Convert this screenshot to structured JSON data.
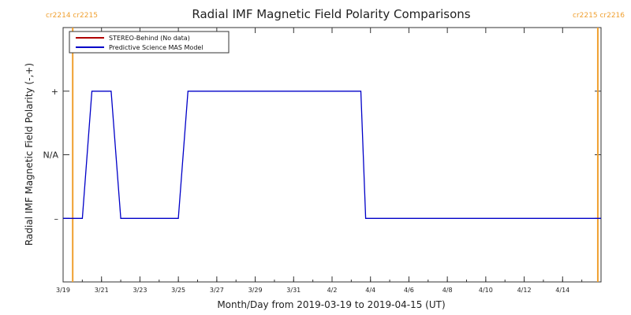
{
  "chart_data": {
    "type": "line",
    "title": "Radial IMF Magnetic Field Polarity Comparisons",
    "xlabel": "Month/Day from 2019-03-19 to 2019-04-15 (UT)",
    "ylabel": "Radial IMF Magnetic Field Polarity (-,+)",
    "x_range": [
      "2019-03-19",
      "2019-04-16"
    ],
    "y_levels": [
      {
        "label": "+",
        "value": 1
      },
      {
        "label": "N/A",
        "value": 0
      },
      {
        "label": "–",
        "value": -1
      }
    ],
    "ylim": [
      -2,
      2
    ],
    "x_ticks": [
      {
        "date": "2019-03-19",
        "label": "3/19"
      },
      {
        "date": "2019-03-21",
        "label": "3/21"
      },
      {
        "date": "2019-03-23",
        "label": "3/23"
      },
      {
        "date": "2019-03-25",
        "label": "3/25"
      },
      {
        "date": "2019-03-27",
        "label": "3/27"
      },
      {
        "date": "2019-03-29",
        "label": "3/29"
      },
      {
        "date": "2019-03-31",
        "label": "3/31"
      },
      {
        "date": "2019-04-02",
        "label": "4/2"
      },
      {
        "date": "2019-04-04",
        "label": "4/4"
      },
      {
        "date": "2019-04-06",
        "label": "4/6"
      },
      {
        "date": "2019-04-08",
        "label": "4/8"
      },
      {
        "date": "2019-04-10",
        "label": "4/10"
      },
      {
        "date": "2019-04-12",
        "label": "4/12"
      },
      {
        "date": "2019-04-14",
        "label": "4/14"
      }
    ],
    "series": [
      {
        "name": "STEREO-Behind (No data)",
        "color": "#b00000",
        "points": []
      },
      {
        "name": "Predictive Science MAS Model",
        "color": "#0000c8",
        "points": [
          {
            "x": "2019-03-19T00:00",
            "y": -1
          },
          {
            "x": "2019-03-20T00:00",
            "y": -1
          },
          {
            "x": "2019-03-20T12:00",
            "y": 1
          },
          {
            "x": "2019-03-21T12:00",
            "y": 1
          },
          {
            "x": "2019-03-22T00:00",
            "y": -1
          },
          {
            "x": "2019-03-25T00:00",
            "y": -1
          },
          {
            "x": "2019-03-25T12:00",
            "y": 1
          },
          {
            "x": "2019-04-03T12:00",
            "y": 1
          },
          {
            "x": "2019-04-03T18:00",
            "y": -1
          },
          {
            "x": "2019-04-16T00:00",
            "y": -1
          }
        ]
      }
    ],
    "carrington_markers": [
      {
        "date": "2019-03-19T12:00",
        "left": "cr2214",
        "right": "cr2215",
        "color": "#f0a030"
      },
      {
        "date": "2019-04-15T20:00",
        "left": "cr2215",
        "right": "cr2216",
        "color": "#f0a030"
      }
    ],
    "legend": "top-left",
    "grid": false
  }
}
